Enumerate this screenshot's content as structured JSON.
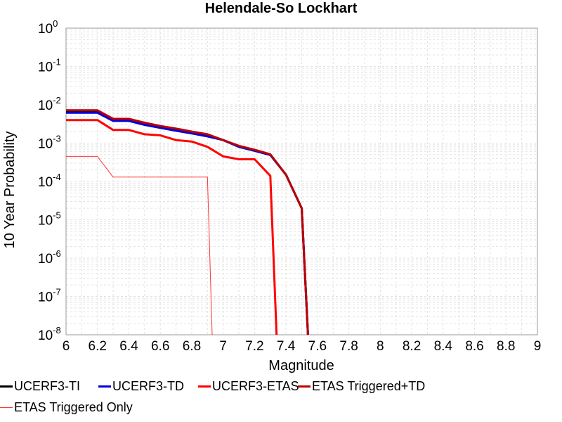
{
  "chart_data": {
    "type": "line",
    "title": "Helendale-So Lockhart",
    "xlabel": "Magnitude",
    "ylabel": "10 Year Probability",
    "xlim": [
      6,
      9
    ],
    "ylim": [
      1e-08,
      1
    ],
    "yscale": "log",
    "grid": true,
    "legend_position": "bottom",
    "x_ticks": [
      "6",
      "6.2",
      "6.4",
      "6.6",
      "6.8",
      "7",
      "7.2",
      "7.4",
      "7.6",
      "7.8",
      "8",
      "8.2",
      "8.4",
      "8.6",
      "8.8",
      "9"
    ],
    "y_ticks": [
      {
        "base": "10",
        "exp": "-8"
      },
      {
        "base": "10",
        "exp": "-7"
      },
      {
        "base": "10",
        "exp": "-6"
      },
      {
        "base": "10",
        "exp": "-5"
      },
      {
        "base": "10",
        "exp": "-4"
      },
      {
        "base": "10",
        "exp": "-3"
      },
      {
        "base": "10",
        "exp": "-2"
      },
      {
        "base": "10",
        "exp": "-1"
      },
      {
        "base": "10",
        "exp": "0"
      }
    ],
    "series": [
      {
        "name": "UCERF3-TI",
        "color": "#000000",
        "width": 3,
        "x": [
          6.0,
          6.2,
          6.3,
          6.4,
          6.5,
          6.6,
          6.7,
          6.8,
          6.9,
          7.0,
          7.1,
          7.2,
          7.3,
          7.4,
          7.5,
          7.54
        ],
        "y": [
          0.0065,
          0.0065,
          0.004,
          0.004,
          0.0032,
          0.0026,
          0.0022,
          0.0019,
          0.0016,
          0.0012,
          0.00082,
          0.00065,
          0.0005,
          0.00015,
          2e-05,
          1e-08
        ]
      },
      {
        "name": "UCERF3-TD",
        "color": "#0000dd",
        "width": 3,
        "x": [
          6.0,
          6.2,
          6.3,
          6.4,
          6.5,
          6.6,
          6.7,
          6.8,
          6.9,
          7.0,
          7.1,
          7.2,
          7.3,
          7.4,
          7.5,
          7.54
        ],
        "y": [
          0.0062,
          0.0062,
          0.0038,
          0.0038,
          0.003,
          0.0025,
          0.0021,
          0.0018,
          0.0015,
          0.0012,
          0.0008,
          0.00063,
          0.00049,
          0.00015,
          2e-05,
          1e-08
        ]
      },
      {
        "name": "UCERF3-ETAS",
        "color": "#ff0000",
        "width": 3,
        "x": [
          6.0,
          6.2,
          6.3,
          6.4,
          6.5,
          6.6,
          6.7,
          6.8,
          6.9,
          7.0,
          7.1,
          7.2,
          7.3,
          7.34
        ],
        "y": [
          0.004,
          0.004,
          0.0022,
          0.0022,
          0.0017,
          0.0016,
          0.0012,
          0.0011,
          0.0008,
          0.00045,
          0.00038,
          0.00038,
          0.00014,
          1e-08
        ]
      },
      {
        "name": "ETAS Triggered+TD",
        "color": "#bb0000",
        "width": 3,
        "x": [
          6.0,
          6.2,
          6.3,
          6.4,
          6.5,
          6.6,
          6.7,
          6.8,
          6.9,
          7.0,
          7.1,
          7.2,
          7.3,
          7.4,
          7.5,
          7.54
        ],
        "y": [
          0.0072,
          0.0072,
          0.0043,
          0.0043,
          0.0034,
          0.0028,
          0.0024,
          0.002,
          0.0017,
          0.0012,
          0.00085,
          0.00067,
          0.00051,
          0.00015,
          2e-05,
          1e-08
        ]
      },
      {
        "name": "ETAS Triggered Only",
        "color": "#ff3333",
        "width": 1,
        "x": [
          6.0,
          6.2,
          6.3,
          6.9,
          6.93
        ],
        "y": [
          0.00045,
          0.00045,
          0.00013,
          0.00013,
          1e-08
        ]
      }
    ]
  }
}
